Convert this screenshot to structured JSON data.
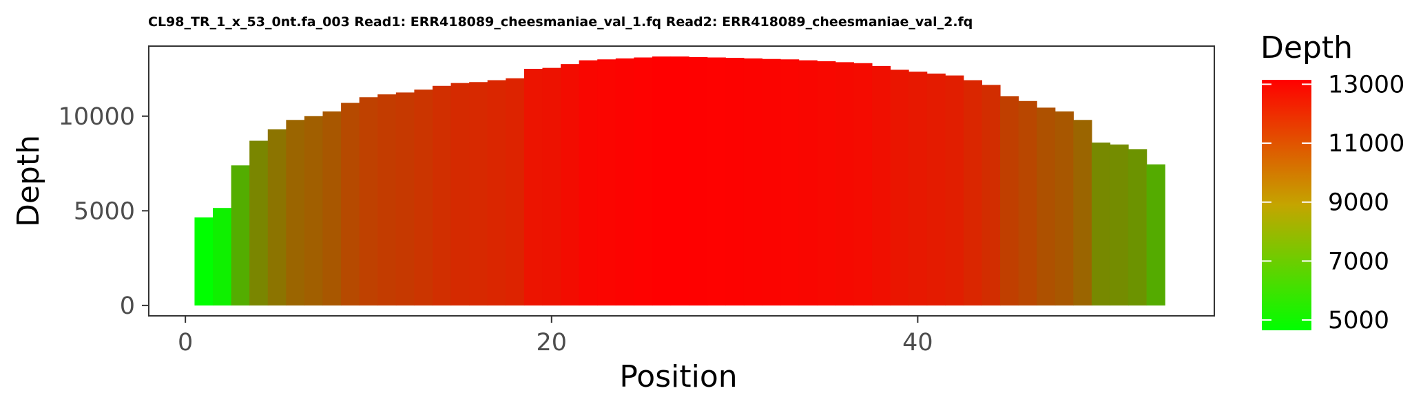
{
  "chart_data": {
    "type": "bar",
    "title": "CL98_TR_1_x_53_0nt.fa_003 Read1: ERR418089_cheesmaniae_val_1.fq Read2: ERR418089_cheesmaniae_val_2.fq",
    "xlabel": "Position",
    "ylabel": "Depth",
    "xlim": [
      -2,
      56.2
    ],
    "ylim": [
      -550,
      13700
    ],
    "x_ticks": [
      0,
      20,
      40
    ],
    "y_ticks": [
      0,
      5000,
      10000
    ],
    "x_tick_labels": [
      "0",
      "20",
      "40"
    ],
    "y_tick_labels": [
      "0",
      "5000",
      "10000"
    ],
    "grid": false,
    "x": [
      1,
      2,
      3,
      4,
      5,
      6,
      7,
      8,
      9,
      10,
      11,
      12,
      13,
      14,
      15,
      16,
      17,
      18,
      19,
      20,
      21,
      22,
      23,
      24,
      25,
      26,
      27,
      28,
      29,
      30,
      31,
      32,
      33,
      34,
      35,
      36,
      37,
      38,
      39,
      40,
      41,
      42,
      43,
      44,
      45,
      46,
      47,
      48,
      49,
      50,
      51,
      52,
      53
    ],
    "values": [
      4650,
      5150,
      7400,
      8700,
      9300,
      9800,
      10000,
      10250,
      10700,
      11000,
      11150,
      11250,
      11400,
      11600,
      11750,
      11800,
      11900,
      12000,
      12500,
      12550,
      12750,
      12950,
      13000,
      13050,
      13100,
      13150,
      13150,
      13120,
      13100,
      13080,
      13050,
      13020,
      13000,
      12950,
      12900,
      12850,
      12800,
      12650,
      12450,
      12350,
      12250,
      12150,
      11900,
      11650,
      11050,
      10800,
      10450,
      10250,
      9800,
      8600,
      8500,
      8250,
      7450
    ],
    "fill_scale": {
      "name": "Depth",
      "low_color": "#00ff00",
      "high_color": "#ff0000",
      "limits": [
        4650,
        13150
      ],
      "breaks": [
        5000,
        7000,
        9000,
        11000,
        13000
      ],
      "break_labels": [
        "5000",
        "7000",
        "9000",
        "11000",
        "13000"
      ]
    }
  }
}
